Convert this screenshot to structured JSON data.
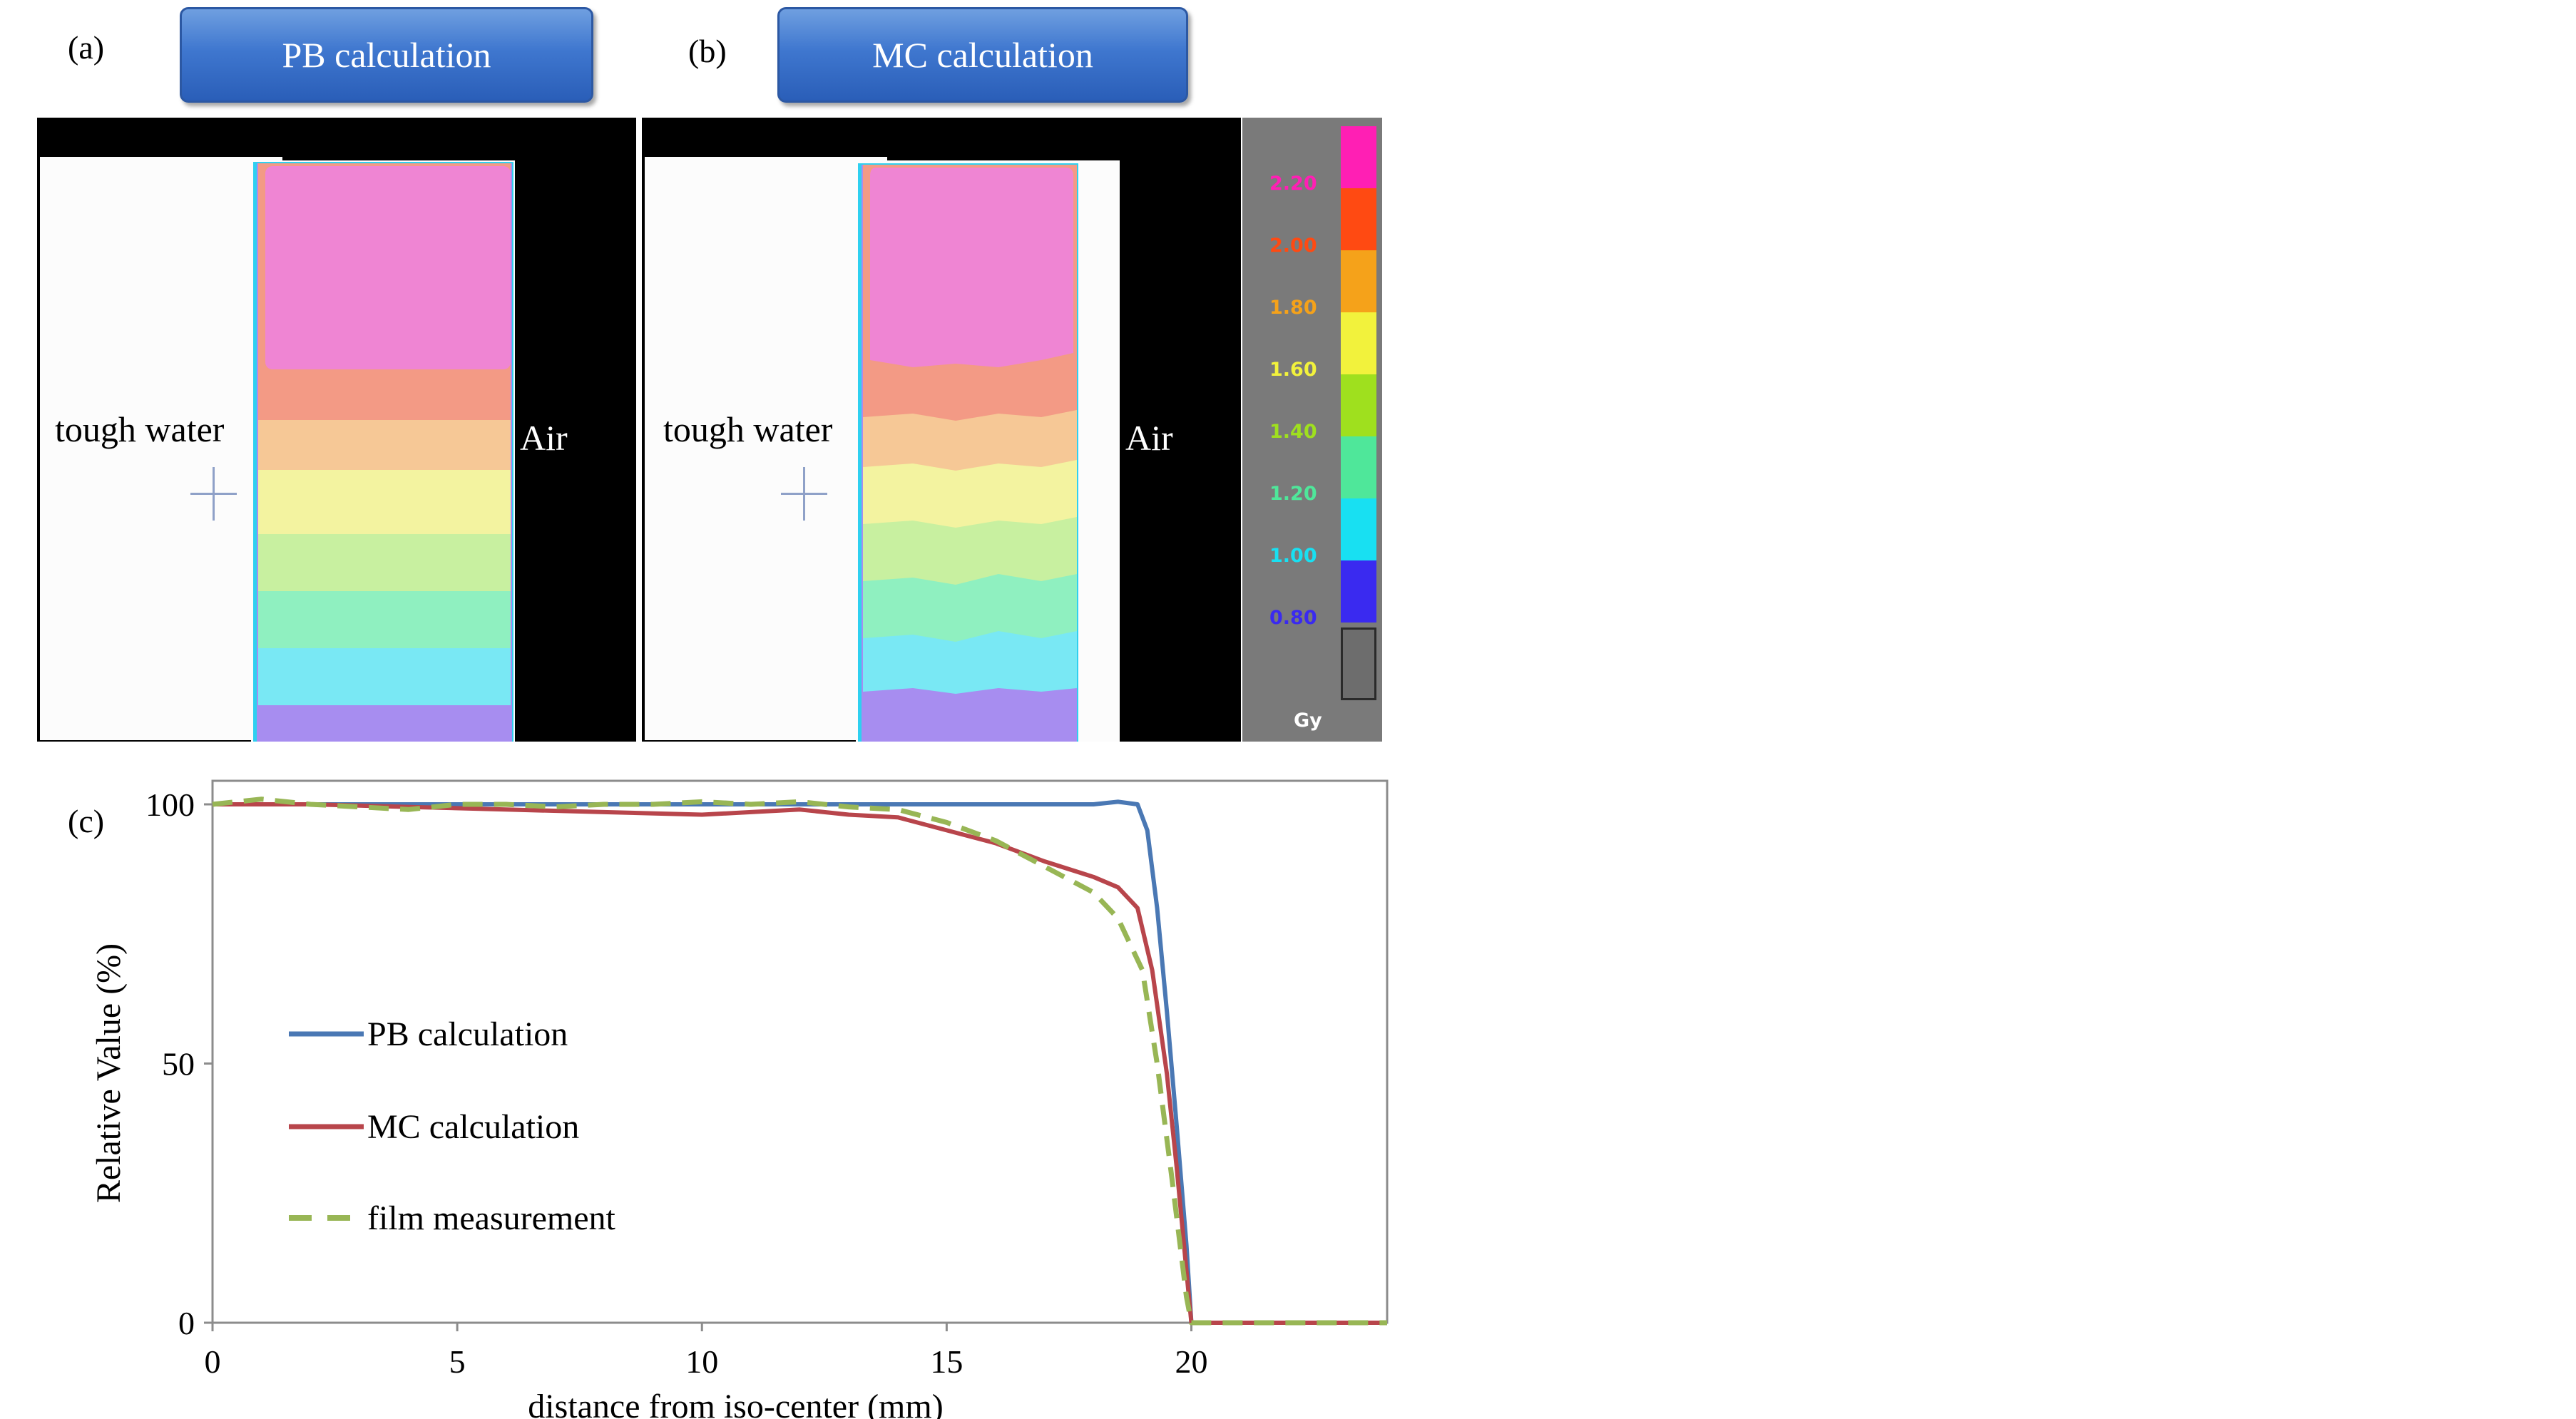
{
  "panels": {
    "a_label": "(a)",
    "b_label": "(b)",
    "c_label": "(c)",
    "a_title": "PB calculation",
    "b_title": "MC calculation",
    "left_region": "tough water",
    "right_region": "Air"
  },
  "colorbar": {
    "unit": "Gy",
    "levels": [
      {
        "label": "2.20",
        "color": "#ff1fb4"
      },
      {
        "label": "2.00",
        "color": "#ff4a12"
      },
      {
        "label": "1.80",
        "color": "#f5a21a"
      },
      {
        "label": "1.60",
        "color": "#f2f23c"
      },
      {
        "label": "1.40",
        "color": "#9fe01e"
      },
      {
        "label": "1.20",
        "color": "#4fe79a"
      },
      {
        "label": "1.00",
        "color": "#18e0f2"
      },
      {
        "label": "0.80",
        "color": "#3a2af0"
      }
    ]
  },
  "chart_data": {
    "type": "line",
    "xlabel": "distance from iso-center (mm)",
    "ylabel": "Relative Value (%)",
    "xlim": [
      0,
      24
    ],
    "ylim": [
      0,
      105
    ],
    "xticks": [
      "0",
      "5",
      "10",
      "15",
      "20"
    ],
    "yticks": [
      "0",
      "50",
      "100"
    ],
    "legend_position": "left-middle",
    "series": [
      {
        "name": "PB calculation",
        "color": "#4a78b4",
        "dash": false,
        "x": [
          0,
          2,
          4,
          6,
          8,
          10,
          12,
          14,
          16,
          17,
          18,
          18.5,
          18.9,
          19.1,
          19.3,
          19.5,
          19.7,
          19.9,
          20.0,
          21,
          22,
          24
        ],
        "y": [
          100,
          100,
          100,
          100,
          100,
          100,
          100,
          100,
          100,
          100,
          100,
          100.5,
          100,
          95,
          80,
          60,
          38,
          15,
          0,
          0,
          0,
          0
        ]
      },
      {
        "name": "MC calculation",
        "color": "#b8454b",
        "dash": false,
        "x": [
          0,
          2,
          4,
          6,
          8,
          10,
          11,
          12,
          13,
          14,
          15,
          16,
          17,
          18,
          18.5,
          18.9,
          19.2,
          19.5,
          19.7,
          19.9,
          20.0,
          21,
          24
        ],
        "y": [
          100,
          100,
          99.5,
          99,
          98.5,
          98,
          98.5,
          99,
          98,
          97.5,
          95,
          92.5,
          89,
          86,
          84,
          80,
          68,
          48,
          30,
          10,
          0,
          0,
          0
        ]
      },
      {
        "name": "film measurement",
        "color": "#98b655",
        "dash": true,
        "x": [
          0,
          1,
          2,
          3,
          4,
          5,
          6,
          7,
          8,
          9,
          10,
          11,
          12,
          13,
          14,
          15,
          16,
          17,
          18,
          18.5,
          19.0,
          19.3,
          19.6,
          19.9,
          20.0,
          20.5,
          21,
          22,
          24
        ],
        "y": [
          100,
          101,
          100,
          99.5,
          99,
          100,
          100,
          99.5,
          100,
          100,
          100.5,
          100,
          100.5,
          99.5,
          99,
          96.5,
          93,
          88,
          83,
          78,
          68,
          50,
          28,
          5,
          0,
          0,
          0,
          0,
          0
        ]
      }
    ]
  }
}
